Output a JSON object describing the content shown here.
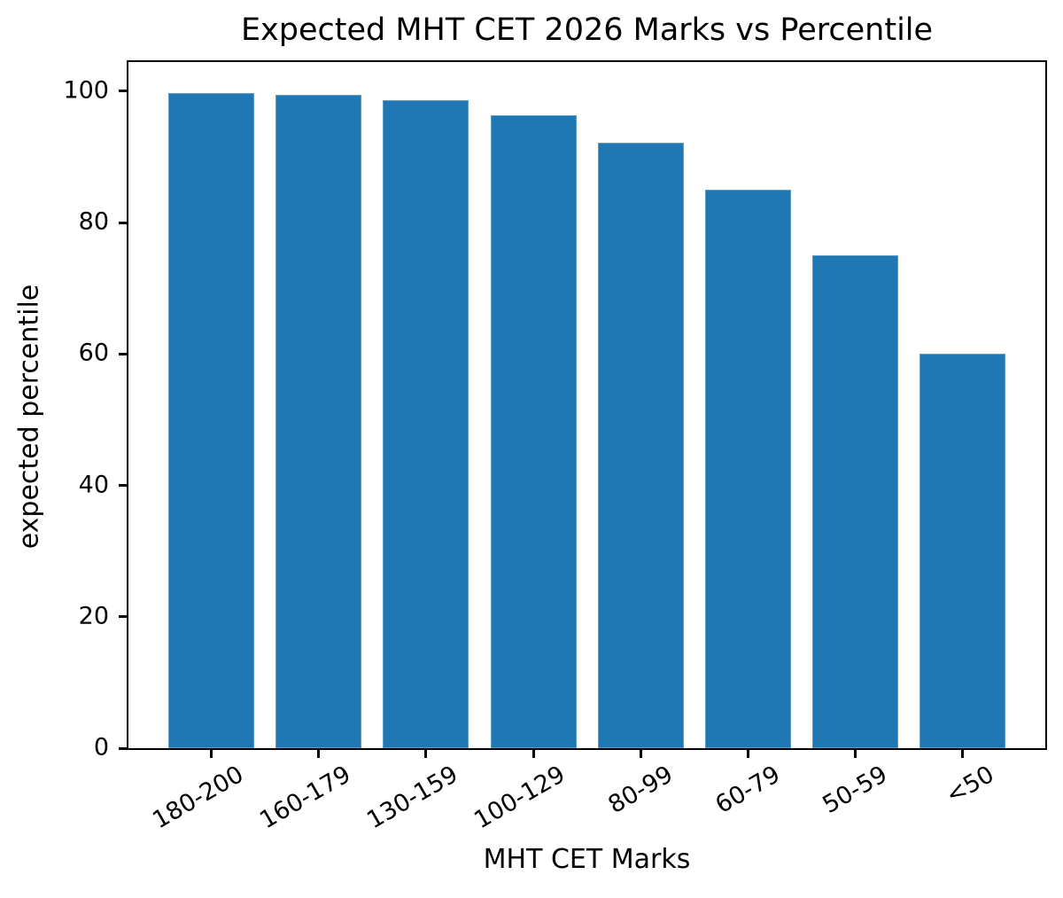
{
  "chart_data": {
    "type": "bar",
    "title": "Expected MHT CET 2026 Marks vs Percentile",
    "xlabel": "MHT CET Marks",
    "ylabel": "expected percentile",
    "categories": [
      "180-200",
      "160-179",
      "130-159",
      "100-129",
      "80-99",
      "60-79",
      "50-59",
      "<50"
    ],
    "values": [
      99.7,
      99.5,
      98.6,
      96.3,
      92.2,
      85,
      75,
      60
    ],
    "yticks": [
      0,
      20,
      40,
      60,
      80,
      100
    ],
    "ylim": [
      0,
      104.7
    ],
    "x_tick_rotation_deg": 30,
    "bar_color": "#1f77b4",
    "axis_color": "#000000",
    "text_color": "#000000",
    "background_color": "#ffffff",
    "grid": "off",
    "legend": "none"
  }
}
